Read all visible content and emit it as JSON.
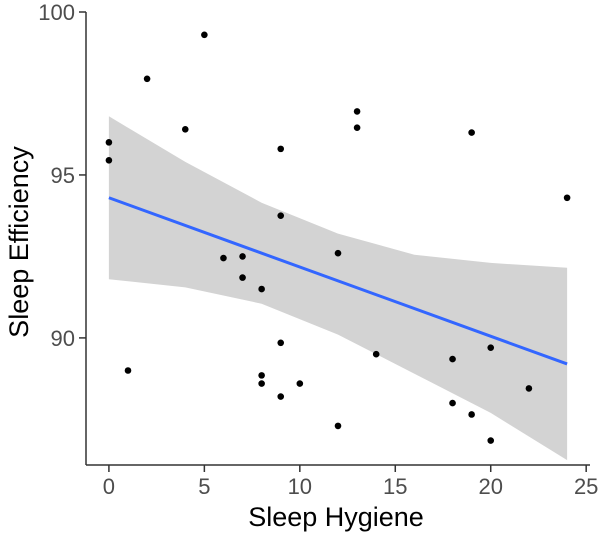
{
  "chart_data": {
    "type": "scatter",
    "xlabel": "Sleep Hygiene",
    "ylabel": "Sleep Efficiency",
    "xlim": [
      -1.2,
      25.2
    ],
    "ylim": [
      86.1,
      100.0
    ],
    "xticks": [
      0,
      5,
      10,
      15,
      20,
      25
    ],
    "yticks": [
      90,
      95,
      100
    ],
    "xtick_labels": [
      "0",
      "5",
      "10",
      "15",
      "20",
      "25"
    ],
    "ytick_labels": [
      "90",
      "95",
      "100"
    ],
    "grid": false,
    "legend": "none",
    "points": [
      {
        "x": 0,
        "y": 96.0
      },
      {
        "x": 0,
        "y": 95.45
      },
      {
        "x": 1,
        "y": 89.0
      },
      {
        "x": 2,
        "y": 97.95
      },
      {
        "x": 4,
        "y": 96.4
      },
      {
        "x": 5,
        "y": 99.3
      },
      {
        "x": 6,
        "y": 92.45
      },
      {
        "x": 7,
        "y": 92.5
      },
      {
        "x": 7,
        "y": 91.85
      },
      {
        "x": 8,
        "y": 91.5
      },
      {
        "x": 8,
        "y": 88.85
      },
      {
        "x": 8,
        "y": 88.6
      },
      {
        "x": 9,
        "y": 95.8
      },
      {
        "x": 9,
        "y": 93.75
      },
      {
        "x": 9,
        "y": 89.85
      },
      {
        "x": 9,
        "y": 88.2
      },
      {
        "x": 10,
        "y": 88.6
      },
      {
        "x": 12,
        "y": 92.6
      },
      {
        "x": 12,
        "y": 87.3
      },
      {
        "x": 13,
        "y": 96.95
      },
      {
        "x": 13,
        "y": 96.45
      },
      {
        "x": 14,
        "y": 89.5
      },
      {
        "x": 18,
        "y": 89.35
      },
      {
        "x": 18,
        "y": 88.0
      },
      {
        "x": 19,
        "y": 96.3
      },
      {
        "x": 19,
        "y": 87.65
      },
      {
        "x": 20,
        "y": 89.7
      },
      {
        "x": 20,
        "y": 86.85
      },
      {
        "x": 22,
        "y": 88.45
      },
      {
        "x": 24,
        "y": 94.3
      }
    ],
    "fit_line": {
      "x": [
        0,
        24
      ],
      "y": [
        94.3,
        89.2
      ]
    },
    "confidence_band": {
      "x": [
        0,
        4,
        8,
        12,
        16,
        20,
        24
      ],
      "upper": [
        96.8,
        95.4,
        94.15,
        93.2,
        92.55,
        92.3,
        92.15
      ],
      "lower": [
        91.8,
        91.55,
        91.05,
        90.1,
        88.9,
        87.7,
        86.25
      ]
    },
    "colors": {
      "points": "#000000",
      "fit_line": "#3366ff",
      "band": "#d3d3d3",
      "axis": "#333333",
      "tick_label": "#4d4d4d",
      "axis_title": "#000000"
    }
  }
}
